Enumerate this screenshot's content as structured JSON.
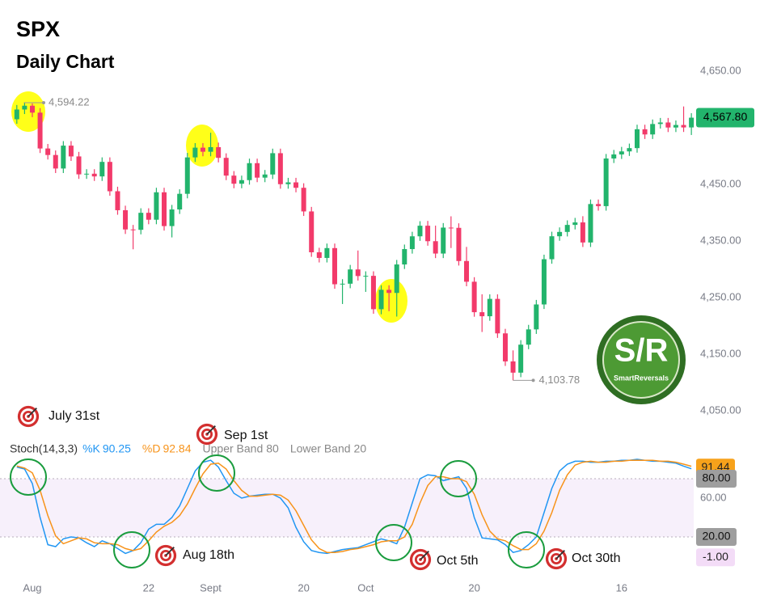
{
  "chart_data": [
    {
      "type": "candlestick",
      "title": "SPX",
      "subtitle": "Daily Chart",
      "categories": [
        null,
        null,
        "Aug",
        null,
        null,
        null,
        null,
        null,
        null,
        null,
        null,
        null,
        null,
        null,
        null,
        null,
        null,
        "22",
        null,
        null,
        null,
        null,
        null,
        null,
        null,
        "Sept",
        null,
        null,
        null,
        null,
        null,
        null,
        null,
        null,
        null,
        null,
        null,
        "20",
        null,
        null,
        null,
        null,
        null,
        null,
        null,
        "Oct",
        null,
        null,
        null,
        null,
        null,
        null,
        null,
        null,
        null,
        null,
        null,
        null,
        null,
        "20",
        null,
        null,
        null,
        null,
        null,
        null,
        null,
        null,
        null,
        null,
        null,
        null,
        null,
        null,
        null,
        null,
        null,
        null,
        "16",
        null,
        null,
        null,
        null,
        null,
        null,
        null,
        null,
        null
      ],
      "open": [
        4565,
        4582.23,
        4588.96,
        4576.73,
        4513.39,
        4501.89,
        4478.03,
        4518.44,
        4499.38,
        4467.71,
        4468.83,
        4464.05,
        4489.72,
        4437.86,
        4404.33,
        4370.36,
        4369.71,
        4399.77,
        4387.55,
        4436.01,
        4376.31,
        4405.71,
        4433.31,
        4497.63,
        4514.87,
        4507.66,
        4515.77,
        4496.83,
        4465.48,
        4451.14,
        4457.49,
        4487.46,
        4461.9,
        4467.44,
        4505.1,
        4450.32,
        4453.53,
        4443.95,
        4402.2,
        4330,
        4320.06,
        4337.44,
        4273.53,
        4274.51,
        4299.7,
        4288.05,
        4288.39,
        4229.45,
        4263.75,
        4258.19,
        4308.5,
        4335.66,
        4358.24,
        4376.95,
        4349.61,
        4327.78,
        4373.63,
        4373.2,
        4314.6,
        4278,
        4224.16,
        4217.04,
        4247.68,
        4186.77,
        4137.23,
        4117.37,
        4166.82,
        4193.8,
        4237.86,
        4317.78,
        4358.34,
        4365.98,
        4378.38,
        4382.78,
        4347.35,
        4415.24,
        4411.55,
        4495.7,
        4502.88,
        4508.24,
        4514.02,
        4547.38,
        4538.19,
        4556.62,
        4559.34,
        4550.43,
        4554.89,
        4550.58
      ],
      "high": [
        4590.23,
        4594.22,
        4593,
        4584.73,
        4521.39,
        4509.89,
        4526.44,
        4526.44,
        4507.38,
        4476.83,
        4476.83,
        4497.72,
        4497.72,
        4445.86,
        4412.33,
        4378.36,
        4407.77,
        4407.77,
        4444.01,
        4444.01,
        4413.71,
        4441.31,
        4505.63,
        4522.87,
        4522.87,
        4541.25,
        4523.77,
        4504.83,
        4473.48,
        4465.49,
        4495.46,
        4495.46,
        4475.44,
        4513.1,
        4513.1,
        4461.53,
        4461.53,
        4451.95,
        4410.2,
        4338,
        4345.44,
        4345.44,
        4282.51,
        4307.7,
        4333.15,
        4296.39,
        4296.39,
        4271.75,
        4271.75,
        4316.5,
        4343.66,
        4366.24,
        4384.95,
        4385.46,
        4377.1,
        4381.63,
        4393.57,
        4381.2,
        4339.54,
        4286,
        4255.84,
        4255.68,
        4255.68,
        4194.77,
        4156.7,
        4174.82,
        4201.8,
        4245.86,
        4325.78,
        4366.34,
        4373.98,
        4386.38,
        4390.78,
        4393.78,
        4423.24,
        4423.24,
        4503.7,
        4510.88,
        4516.24,
        4522.02,
        4555.38,
        4555.38,
        4564.62,
        4567.34,
        4567.34,
        4562.89,
        4587.64,
        4575.8
      ],
      "low": [
        4557,
        4574.23,
        4568.73,
        4505.39,
        4493.89,
        4470.03,
        4470.03,
        4491.38,
        4459.71,
        4459.71,
        4456.05,
        4456.05,
        4429.86,
        4396.33,
        4362.36,
        4335.31,
        4361.71,
        4379.55,
        4379.55,
        4368.31,
        4356.29,
        4397.71,
        4425.31,
        4489.63,
        4499.66,
        4499.66,
        4488.83,
        4457.48,
        4443.14,
        4443.14,
        4449.49,
        4453.9,
        4453.9,
        4459.44,
        4442.32,
        4442.32,
        4435.95,
        4394.2,
        4322,
        4312.06,
        4312.06,
        4265.53,
        4238.63,
        4266.51,
        4280.05,
        4260.05,
        4221.45,
        4220.48,
        4225.91,
        4216.45,
        4300.5,
        4327.66,
        4350.24,
        4341.61,
        4319.78,
        4319.78,
        4337.54,
        4306.6,
        4270,
        4216.16,
        4189.22,
        4209.04,
        4178.77,
        4129.23,
        4103.78,
        4109.37,
        4158.82,
        4185.8,
        4229.86,
        4309.78,
        4350.34,
        4357.98,
        4370.38,
        4339.35,
        4339.35,
        4403.55,
        4403.55,
        4487.7,
        4494.88,
        4500.24,
        4506.02,
        4530.19,
        4530.19,
        4548.62,
        4542.43,
        4542.43,
        4542.58,
        4537.24
      ],
      "close": [
        4582.23,
        4588.96,
        4576.73,
        4513.39,
        4501.89,
        4478.03,
        4518.44,
        4499.38,
        4467.71,
        4468.83,
        4464.05,
        4489.72,
        4437.86,
        4404.33,
        4370.36,
        4369.71,
        4399.77,
        4387.55,
        4436.01,
        4376.31,
        4405.71,
        4433.31,
        4497.63,
        4514.87,
        4507.66,
        4515.77,
        4496.83,
        4465.48,
        4451.14,
        4457.49,
        4487.46,
        4461.9,
        4467.44,
        4505.1,
        4450.32,
        4453.53,
        4443.95,
        4402.2,
        4330,
        4320.06,
        4337.44,
        4273.53,
        4274.51,
        4299.7,
        4288.05,
        4288.39,
        4229.45,
        4263.75,
        4258.19,
        4308.5,
        4335.66,
        4358.24,
        4376.95,
        4349.61,
        4327.78,
        4373.63,
        4373.2,
        4314.6,
        4278,
        4224.16,
        4217.04,
        4247.68,
        4186.77,
        4137.23,
        4117.37,
        4166.82,
        4193.8,
        4237.86,
        4317.78,
        4358.34,
        4365.98,
        4378.38,
        4382.78,
        4347.35,
        4415.24,
        4411.55,
        4495.7,
        4502.88,
        4508.24,
        4514.02,
        4547.38,
        4538.19,
        4556.62,
        4559.34,
        4550.43,
        4554.89,
        4550.58,
        4567.8
      ],
      "up_color": "#22b46c",
      "down_color": "#f23a6a",
      "ylim": [
        4050,
        4650
      ],
      "yticks": [
        {
          "value": 4050,
          "label": "4,050.00"
        },
        {
          "value": 4150,
          "label": "4,150.00"
        },
        {
          "value": 4250,
          "label": "4,250.00"
        },
        {
          "value": 4350,
          "label": "4,350.00"
        },
        {
          "value": 4450,
          "label": "4,450.00"
        },
        {
          "value": 4650,
          "label": "4,650.00"
        }
      ],
      "high_label": {
        "value": 4594.22,
        "label": "4,594.22"
      },
      "low_label": {
        "value": 4103.78,
        "label": "4,103.78"
      },
      "last_label": {
        "value": 4567.8,
        "label": "4,567.80",
        "color": "#22b46c"
      },
      "annotations": [
        "July 31st",
        "Sep 1st",
        "Aug 18th",
        "Oct 5th",
        "Oct 30th"
      ]
    },
    {
      "type": "line",
      "title": "Stoch(14,3,3)",
      "series": [
        {
          "name": "%K",
          "color": "#2196f3",
          "values": [
            92,
            90,
            75,
            40,
            12,
            10,
            18,
            20,
            19,
            14,
            10,
            16,
            13,
            8,
            3,
            6,
            14,
            28,
            33,
            33,
            40,
            52,
            70,
            88,
            97,
            99,
            92,
            78,
            65,
            60,
            62,
            63,
            64,
            64,
            60,
            50,
            30,
            15,
            6,
            4,
            3,
            5,
            7,
            8,
            9,
            12,
            15,
            18,
            16,
            13,
            30,
            55,
            80,
            84,
            83,
            78,
            80,
            82,
            70,
            40,
            19,
            18,
            17,
            12,
            4,
            6,
            12,
            20,
            45,
            70,
            88,
            95,
            98,
            98,
            97,
            97,
            98,
            98,
            99,
            99,
            100,
            99,
            98,
            98,
            97,
            96,
            93,
            90.25
          ]
        },
        {
          "name": "%D",
          "color": "#f7931a",
          "values": [
            93,
            91,
            86,
            68,
            42,
            21,
            13,
            16,
            19,
            18,
            14,
            13,
            13,
            12,
            8,
            6,
            8,
            16,
            25,
            31,
            35,
            42,
            54,
            70,
            85,
            95,
            96,
            90,
            78,
            68,
            62,
            62,
            63,
            64,
            63,
            58,
            47,
            32,
            17,
            8,
            4,
            4,
            5,
            7,
            8,
            10,
            12,
            15,
            16,
            16,
            20,
            33,
            55,
            73,
            82,
            82,
            80,
            80,
            77,
            64,
            43,
            26,
            18,
            16,
            11,
            7,
            7,
            13,
            26,
            45,
            68,
            84,
            94,
            97,
            98,
            97,
            97,
            98,
            98,
            99,
            99,
            99,
            99,
            98,
            98,
            97,
            95,
            92.84
          ]
        }
      ],
      "bands": [
        {
          "name": "Upper Band",
          "value": 80,
          "label": "80.00"
        },
        {
          "name": "Lower Band",
          "value": 20,
          "label": "20.00"
        }
      ],
      "markers": [
        {
          "value": 91.44,
          "label": "91.44",
          "color": "#f7a21b"
        },
        {
          "value": -1,
          "label": "-1.00",
          "color": "#f3dcf7"
        }
      ],
      "ylim": [
        0,
        100
      ],
      "yticks": [
        {
          "value": 60,
          "label": "60.00"
        }
      ]
    }
  ],
  "logo": {
    "text": "S/R",
    "subtitle": "SmartReversals"
  }
}
